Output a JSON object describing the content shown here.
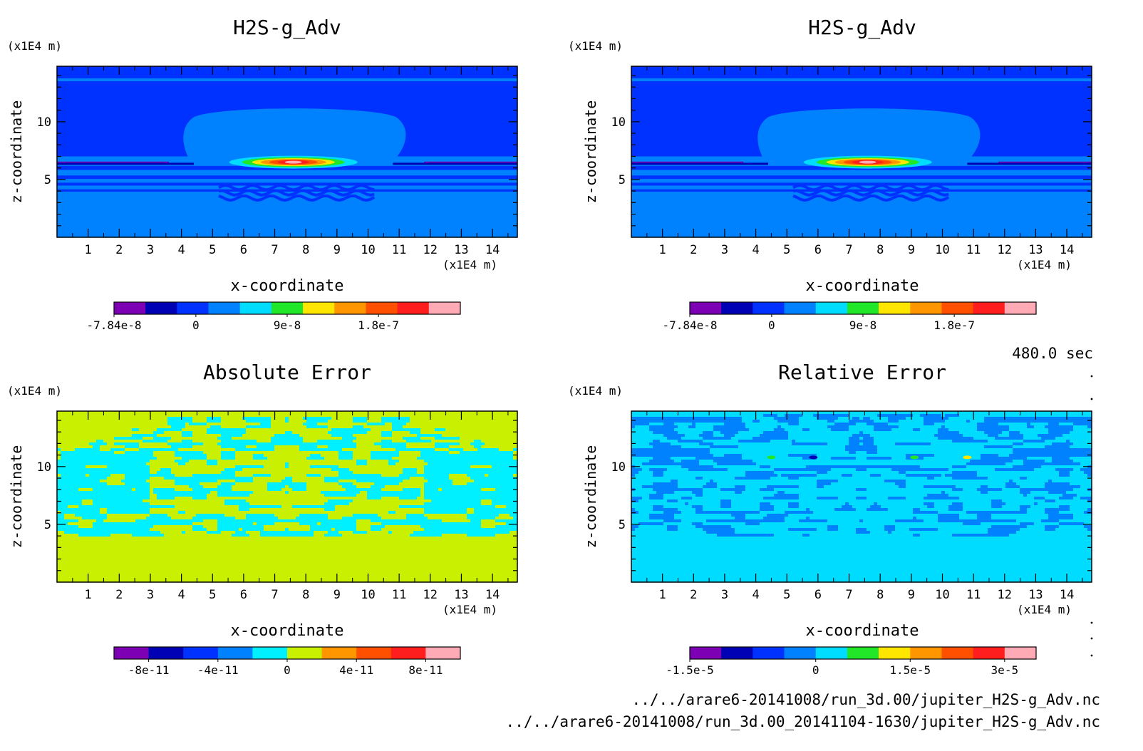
{
  "time_label": "480.0 sec",
  "file_paths": [
    "../../arare6-20141008/run_3d.00/jupiter_H2S-g_Adv.nc",
    "../../arare6-20141008/run_3d.00_20141104-1630/jupiter_H2S-g_Adv.nc"
  ],
  "chart_data": [
    {
      "type": "heatmap",
      "title": "H2S-g_Adv",
      "xlabel": "x-coordinate",
      "ylabel": "z-coordinate",
      "x_unit": "(x1E4 m)",
      "y_unit": "(x1E4 m)",
      "x_ticks": [
        "1",
        "2",
        "3",
        "4",
        "5",
        "6",
        "7",
        "8",
        "9",
        "10",
        "11",
        "12",
        "13",
        "14"
      ],
      "y_ticks": [
        "5",
        "10"
      ],
      "xlim": [
        0,
        14.8
      ],
      "ylim": [
        0,
        14.8
      ],
      "pattern": "plume",
      "colorbar": {
        "colors": [
          "#7d00b4",
          "#0000b4",
          "#0032ff",
          "#0082ff",
          "#00dcff",
          "#22e628",
          "#ffe600",
          "#ff9600",
          "#ff5000",
          "#ff1e1e",
          "#ffaab4"
        ],
        "tick_labels": [
          "-7.84e-8",
          "0",
          "9e-8",
          "1.8e-7"
        ]
      }
    },
    {
      "type": "heatmap",
      "title": "H2S-g_Adv",
      "xlabel": "x-coordinate",
      "ylabel": "z-coordinate",
      "x_unit": "(x1E4 m)",
      "y_unit": "(x1E4 m)",
      "x_ticks": [
        "1",
        "2",
        "3",
        "4",
        "5",
        "6",
        "7",
        "8",
        "9",
        "10",
        "11",
        "12",
        "13",
        "14"
      ],
      "y_ticks": [
        "5",
        "10"
      ],
      "xlim": [
        0,
        14.8
      ],
      "ylim": [
        0,
        14.8
      ],
      "pattern": "plume",
      "colorbar": {
        "colors": [
          "#7d00b4",
          "#0000b4",
          "#0032ff",
          "#0082ff",
          "#00dcff",
          "#22e628",
          "#ffe600",
          "#ff9600",
          "#ff5000",
          "#ff1e1e",
          "#ffaab4"
        ],
        "tick_labels": [
          "-7.84e-8",
          "0",
          "9e-8",
          "1.8e-7"
        ]
      }
    },
    {
      "type": "heatmap",
      "title": "Absolute Error",
      "xlabel": "x-coordinate",
      "ylabel": "z-coordinate",
      "x_unit": "(x1E4 m)",
      "y_unit": "(x1E4 m)",
      "x_ticks": [
        "1",
        "2",
        "3",
        "4",
        "5",
        "6",
        "7",
        "8",
        "9",
        "10",
        "11",
        "12",
        "13",
        "14"
      ],
      "y_ticks": [
        "5",
        "10"
      ],
      "xlim": [
        0,
        14.8
      ],
      "ylim": [
        0,
        14.8
      ],
      "pattern": "abs_noise",
      "colorbar": {
        "colors": [
          "#7d00b4",
          "#0000b4",
          "#0032ff",
          "#0082ff",
          "#00f0ff",
          "#c8f000",
          "#ff9600",
          "#ff5000",
          "#ff1e1e",
          "#ffaab4"
        ],
        "tick_labels": [
          "-8e-11",
          "-4e-11",
          "0",
          "4e-11",
          "8e-11"
        ]
      }
    },
    {
      "type": "heatmap",
      "title": "Relative Error",
      "xlabel": "x-coordinate",
      "ylabel": "z-coordinate",
      "x_unit": "(x1E4 m)",
      "y_unit": "(x1E4 m)",
      "x_ticks": [
        "1",
        "2",
        "3",
        "4",
        "5",
        "6",
        "7",
        "8",
        "9",
        "10",
        "11",
        "12",
        "13",
        "14"
      ],
      "y_ticks": [
        "5",
        "10"
      ],
      "xlim": [
        0,
        14.8
      ],
      "ylim": [
        0,
        14.8
      ],
      "pattern": "rel_noise",
      "colorbar": {
        "colors": [
          "#7d00b4",
          "#0000b4",
          "#0032ff",
          "#0082ff",
          "#00dcff",
          "#22e628",
          "#ffe600",
          "#ff9600",
          "#ff5000",
          "#ff1e1e",
          "#ffaab4"
        ],
        "tick_labels": [
          "-1.5e-5",
          "0",
          "1.5e-5",
          "3e-5"
        ]
      }
    }
  ]
}
